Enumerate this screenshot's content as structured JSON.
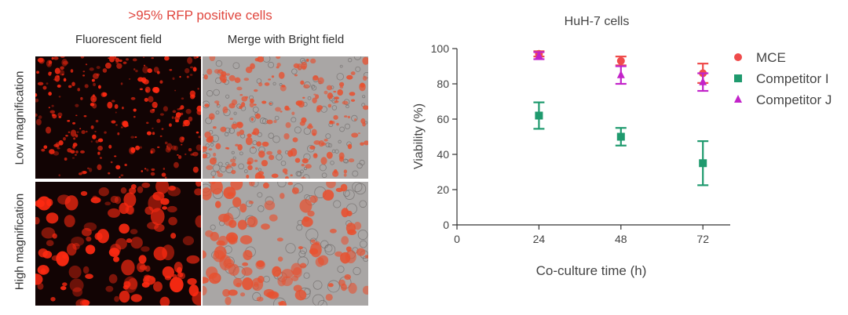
{
  "figure": {
    "left_title": ">95% RFP positive cells",
    "columns": [
      "Fluorescent field",
      "Merge with Bright field"
    ],
    "rows": [
      "Low magnification",
      "High magnification"
    ]
  },
  "colors": {
    "MCE": "#ef4b4b",
    "Competitor I": "#1f9a6e",
    "Competitor J": "#c223c9",
    "fluorescent_bg": "#120404",
    "fluorescent_signal": "#ff2a12",
    "merge_bg": "#a9a6a5"
  },
  "chart_data": {
    "type": "scatter",
    "title": "HuH-7 cells",
    "xlabel": "Co-culture time (h)",
    "ylabel": "Viability (%)",
    "xlim": [
      0,
      80
    ],
    "ylim": [
      0,
      100
    ],
    "x_ticks": [
      0,
      24,
      48,
      72
    ],
    "y_ticks": [
      0,
      20,
      40,
      60,
      80,
      100
    ],
    "legend_position": "right",
    "series": [
      {
        "name": "MCE",
        "marker": "circle",
        "x": [
          24,
          48,
          72
        ],
        "y": [
          97,
          93,
          86
        ],
        "err": [
          1.5,
          2.5,
          5.5
        ]
      },
      {
        "name": "Competitor I",
        "marker": "square",
        "x": [
          24,
          48,
          72
        ],
        "y": [
          62,
          50,
          35
        ],
        "err": [
          7.5,
          5,
          12.5
        ]
      },
      {
        "name": "Competitor J",
        "marker": "triangle",
        "x": [
          24,
          48,
          72
        ],
        "y": [
          96,
          85,
          81
        ],
        "err": [
          2,
          5,
          5
        ]
      }
    ]
  }
}
